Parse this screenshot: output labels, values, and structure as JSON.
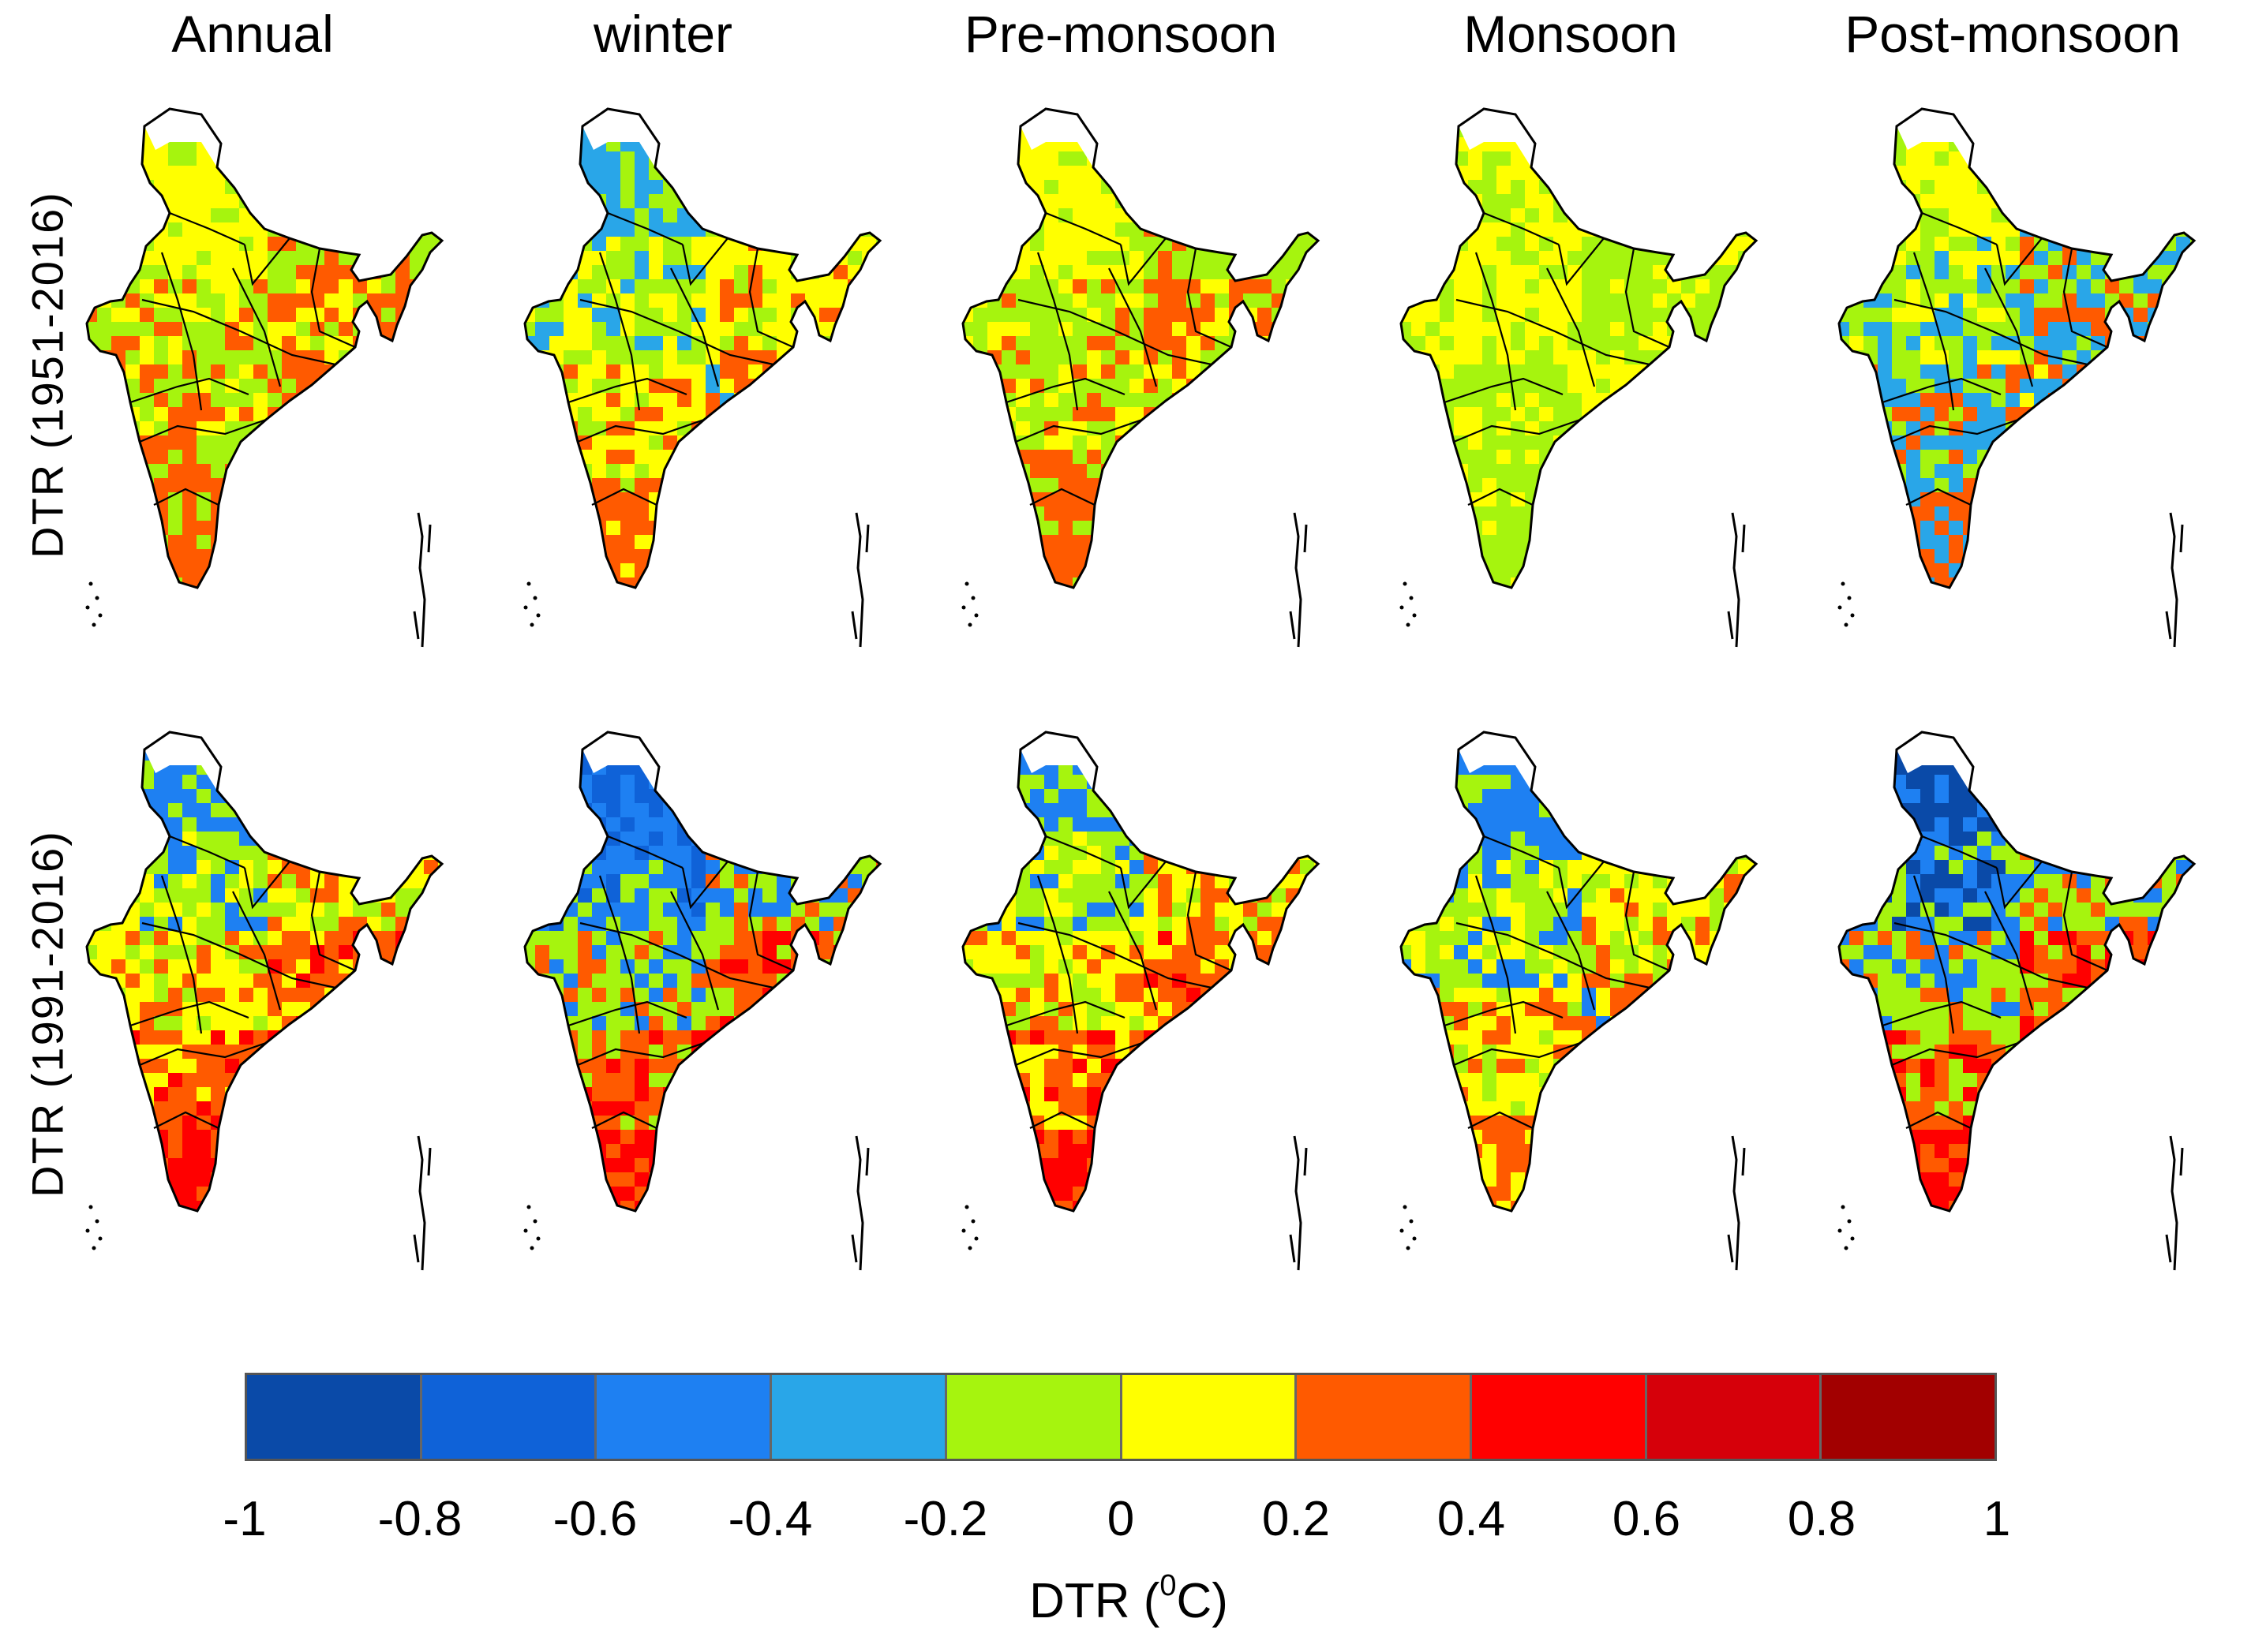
{
  "column_titles": [
    "Annual",
    "winter",
    "Pre-monsoon",
    "Monsoon",
    "Post-monsoon"
  ],
  "row_labels": [
    "DTR (1951-2016)",
    "DTR (1991-2016)"
  ],
  "colorbar": {
    "ticks": [
      "-1",
      "-0.8",
      "-0.6",
      "-0.4",
      "-0.2",
      "0",
      "0.2",
      "0.4",
      "0.6",
      "0.8",
      "1"
    ],
    "colors": [
      "#0a4aa8",
      "#0f62d8",
      "#1e80f2",
      "#29a6e8",
      "#a6f40e",
      "#ffff00",
      "#ff5a00",
      "#ff0000",
      "#d6000a",
      "#a20000"
    ],
    "label_prefix": "DTR (",
    "label_sup": "0",
    "label_suffix": "C)"
  },
  "maps": [
    {
      "period": "DTR (1951-2016)",
      "season": "Annual",
      "palette": [
        "#ffff00",
        "#a6f40e",
        "#ff5a00"
      ]
    },
    {
      "period": "DTR (1951-2016)",
      "season": "winter",
      "palette": [
        "#29a6e8",
        "#a6f40e",
        "#ffff00",
        "#ff5a00"
      ]
    },
    {
      "period": "DTR (1951-2016)",
      "season": "Pre-monsoon",
      "palette": [
        "#ffff00",
        "#a6f40e",
        "#ff5a00"
      ]
    },
    {
      "period": "DTR (1951-2016)",
      "season": "Monsoon",
      "palette": [
        "#ffff00",
        "#a6f40e"
      ]
    },
    {
      "period": "DTR (1951-2016)",
      "season": "Post-monsoon",
      "palette": [
        "#ffff00",
        "#a6f40e",
        "#29a6e8",
        "#ff5a00"
      ]
    },
    {
      "period": "DTR (1991-2016)",
      "season": "Annual",
      "palette": [
        "#1e80f2",
        "#a6f40e",
        "#ffff00",
        "#ff5a00",
        "#ff0000"
      ]
    },
    {
      "period": "DTR (1991-2016)",
      "season": "winter",
      "palette": [
        "#0f62d8",
        "#1e80f2",
        "#a6f40e",
        "#ff5a00",
        "#ff0000"
      ]
    },
    {
      "period": "DTR (1991-2016)",
      "season": "Pre-monsoon",
      "palette": [
        "#1e80f2",
        "#a6f40e",
        "#ffff00",
        "#ff5a00",
        "#ff0000"
      ]
    },
    {
      "period": "DTR (1991-2016)",
      "season": "Monsoon",
      "palette": [
        "#1e80f2",
        "#a6f40e",
        "#ffff00",
        "#ff5a00"
      ]
    },
    {
      "period": "DTR (1991-2016)",
      "season": "Post-monsoon",
      "palette": [
        "#0a4aa8",
        "#1e80f2",
        "#a6f40e",
        "#ff5a00",
        "#ff0000"
      ]
    }
  ]
}
